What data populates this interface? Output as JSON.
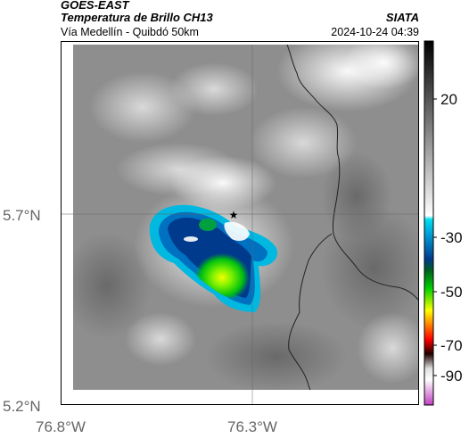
{
  "header": {
    "app": "GOES-EAST",
    "product": "Temperatura de Brillo CH13",
    "brand": "SIATA",
    "subtitle": "Vía Medellín - Quibdó 50km",
    "timestamp": "2024-10-24 04:39"
  },
  "map": {
    "lat_labels": [
      "5.7°N",
      "5.2°N"
    ],
    "lon_labels": [
      "76.8°W",
      "76.3°W"
    ],
    "marker_icon": "star-icon"
  },
  "colorbar": {
    "tick_labels": [
      "20",
      "-30",
      "-50",
      "-70",
      "-90"
    ],
    "stops": [
      "#000000",
      "#ffffff",
      "#00b4d8",
      "#003a8c",
      "#00c020",
      "#ffff00",
      "#ff8000",
      "#ff0000",
      "#200000",
      "#e8e8e8",
      "#c040c0"
    ]
  }
}
